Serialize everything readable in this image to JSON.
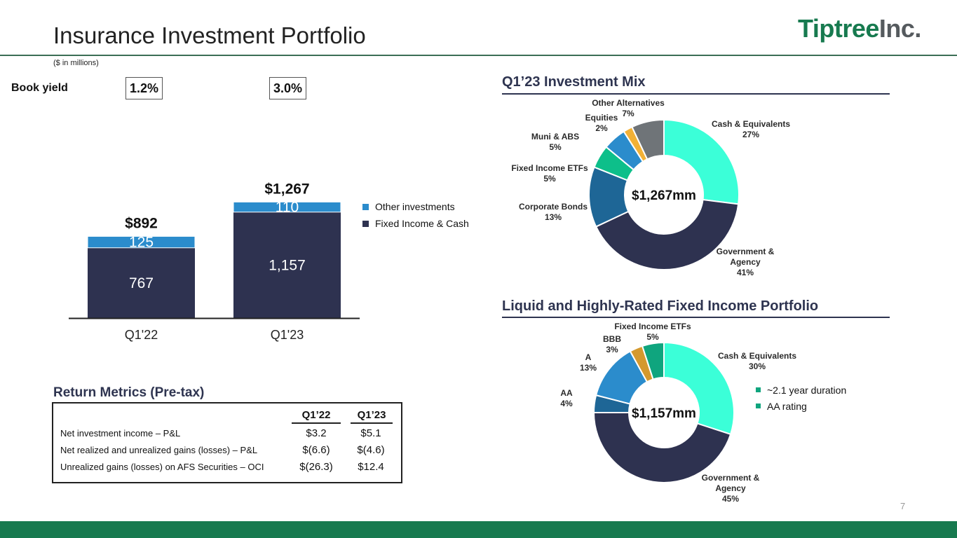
{
  "title": "Insurance Investment Portfolio",
  "logo": {
    "part1": "Tiptree",
    "part2": "Inc."
  },
  "units_note": "($ in millions)",
  "book_yield": {
    "label": "Book yield",
    "q122": "1.2%",
    "q123": "3.0%"
  },
  "page_number": "7",
  "colors": {
    "navy": "#2e3250",
    "blue": "#2b8ccc",
    "accent_green": "#177a4f"
  },
  "chart_data": [
    {
      "type": "bar",
      "stacked": true,
      "categories": [
        "Q1'22",
        "Q1'23"
      ],
      "series": [
        {
          "name": "Fixed Income & Cash",
          "values": [
            767,
            1157
          ],
          "labels": [
            "767",
            "1,157"
          ],
          "color": "#2e3250"
        },
        {
          "name": "Other investments",
          "values": [
            125,
            110
          ],
          "labels": [
            "125",
            "110"
          ],
          "color": "#2b8ccc"
        }
      ],
      "totals": [
        "$892",
        "$1,267"
      ],
      "legend": [
        "Other investments",
        "Fixed Income & Cash"
      ]
    },
    {
      "type": "pie",
      "donut": true,
      "title": "Q1’23 Investment Mix",
      "center_label": "$1,267mm",
      "slices": [
        {
          "name": "Cash & Equivalents",
          "pct": "27%",
          "value": 27,
          "color": "#3bffd8"
        },
        {
          "name": "Government & Agency",
          "pct": "41%",
          "value": 41,
          "color": "#2e3250"
        },
        {
          "name": "Corporate Bonds",
          "pct": "13%",
          "value": 13,
          "color": "#1e6696"
        },
        {
          "name": "Fixed Income ETFs",
          "pct": "5%",
          "value": 5,
          "color": "#0dbf8a"
        },
        {
          "name": "Muni & ABS",
          "pct": "5%",
          "value": 5,
          "color": "#2b8ccc"
        },
        {
          "name": "Equities",
          "pct": "2%",
          "value": 2,
          "color": "#f2b136"
        },
        {
          "name": "Other Alternatives",
          "pct": "7%",
          "value": 7,
          "color": "#6f7478"
        }
      ]
    },
    {
      "type": "pie",
      "donut": true,
      "title": "Liquid and Highly-Rated Fixed Income Portfolio",
      "center_label": "$1,157mm",
      "slices": [
        {
          "name": "Cash & Equivalents",
          "pct": "30%",
          "value": 30,
          "color": "#3bffd8"
        },
        {
          "name": "Government & Agency",
          "pct": "45%",
          "value": 45,
          "color": "#2e3250"
        },
        {
          "name": "AA",
          "pct": "4%",
          "value": 4,
          "color": "#1e6696"
        },
        {
          "name": "A",
          "pct": "13%",
          "value": 13,
          "color": "#2b8ccc"
        },
        {
          "name": "BBB",
          "pct": "3%",
          "value": 3,
          "color": "#d4992e"
        },
        {
          "name": "Fixed Income ETFs",
          "pct": "5%",
          "value": 5,
          "color": "#0fa57e"
        }
      ],
      "notes": [
        "~2.1 year duration",
        "AA rating"
      ]
    }
  ],
  "return_metrics": {
    "title": "Return Metrics (Pre-tax)",
    "columns": [
      "Q1’22",
      "Q1’23"
    ],
    "rows": [
      {
        "label": "Net investment income – P&L",
        "values": [
          "$3.2",
          "$5.1"
        ]
      },
      {
        "label": "Net realized and unrealized gains (losses) – P&L",
        "values": [
          "$(6.6)",
          "$(4.6)"
        ]
      },
      {
        "label": "Unrealized gains (losses) on AFS Securities – OCI",
        "values": [
          "$(26.3)",
          "$12.4"
        ]
      }
    ]
  }
}
